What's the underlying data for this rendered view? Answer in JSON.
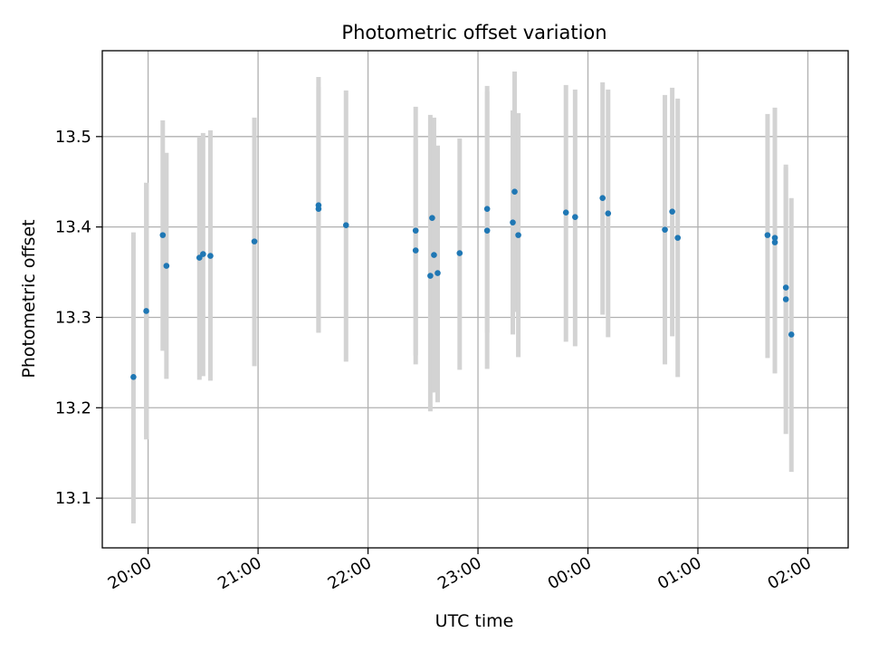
{
  "chart_data": {
    "type": "scatter",
    "title": "Photometric offset variation",
    "xlabel": "UTC time",
    "ylabel": "Photometric offset",
    "grid": true,
    "xlim": [
      "19:35",
      "02:22"
    ],
    "ylim": [
      13.045,
      13.595
    ],
    "x_ticks": [
      "20:00",
      "21:00",
      "22:00",
      "23:00",
      "00:00",
      "01:00",
      "02:00"
    ],
    "y_ticks": [
      "13.1",
      "13.2",
      "13.3",
      "13.4",
      "13.5"
    ],
    "colors": {
      "points": "#1f77b4",
      "error_bars": "#d3d3d3",
      "grid": "#b0b0b0"
    },
    "series": [
      {
        "x": [
          "19:52",
          "19:59",
          "20:08",
          "20:10",
          "20:28",
          "20:30",
          "20:34",
          "20:58",
          "21:33",
          "21:33",
          "21:48",
          "22:26",
          "22:26",
          "22:34",
          "22:35",
          "22:36",
          "22:38",
          "22:50",
          "23:05",
          "23:05",
          "23:19",
          "23:20",
          "23:22",
          "23:48",
          "23:53",
          "24:08",
          "24:11",
          "24:42",
          "24:46",
          "24:49",
          "25:38",
          "25:42",
          "25:42",
          "25:48",
          "25:48",
          "25:51"
        ],
        "y": [
          13.234,
          13.307,
          13.391,
          13.357,
          13.366,
          13.37,
          13.368,
          13.384,
          13.424,
          13.42,
          13.402,
          13.374,
          13.396,
          13.346,
          13.41,
          13.369,
          13.349,
          13.371,
          13.42,
          13.396,
          13.405,
          13.439,
          13.391,
          13.416,
          13.411,
          13.432,
          13.415,
          13.397,
          13.417,
          13.388,
          13.391,
          13.388,
          13.383,
          13.32,
          13.333,
          13.281
        ],
        "yerr_low": [
          13.072,
          13.165,
          13.263,
          13.232,
          13.231,
          13.235,
          13.23,
          13.246,
          13.283,
          13.283,
          13.251,
          13.248,
          13.258,
          13.196,
          13.217,
          13.217,
          13.206,
          13.242,
          13.283,
          13.243,
          13.281,
          13.306,
          13.256,
          13.273,
          13.268,
          13.303,
          13.278,
          13.248,
          13.279,
          13.234,
          13.255,
          13.24,
          13.238,
          13.171,
          13.2,
          13.129
        ],
        "yerr_high": [
          13.394,
          13.449,
          13.518,
          13.482,
          13.5,
          13.504,
          13.507,
          13.521,
          13.566,
          13.555,
          13.551,
          13.533,
          13.497,
          13.524,
          13.52,
          13.521,
          13.49,
          13.498,
          13.556,
          13.55,
          13.529,
          13.572,
          13.526,
          13.557,
          13.552,
          13.56,
          13.552,
          13.546,
          13.554,
          13.542,
          13.525,
          13.532,
          13.528,
          13.469,
          13.466,
          13.432
        ]
      }
    ]
  }
}
